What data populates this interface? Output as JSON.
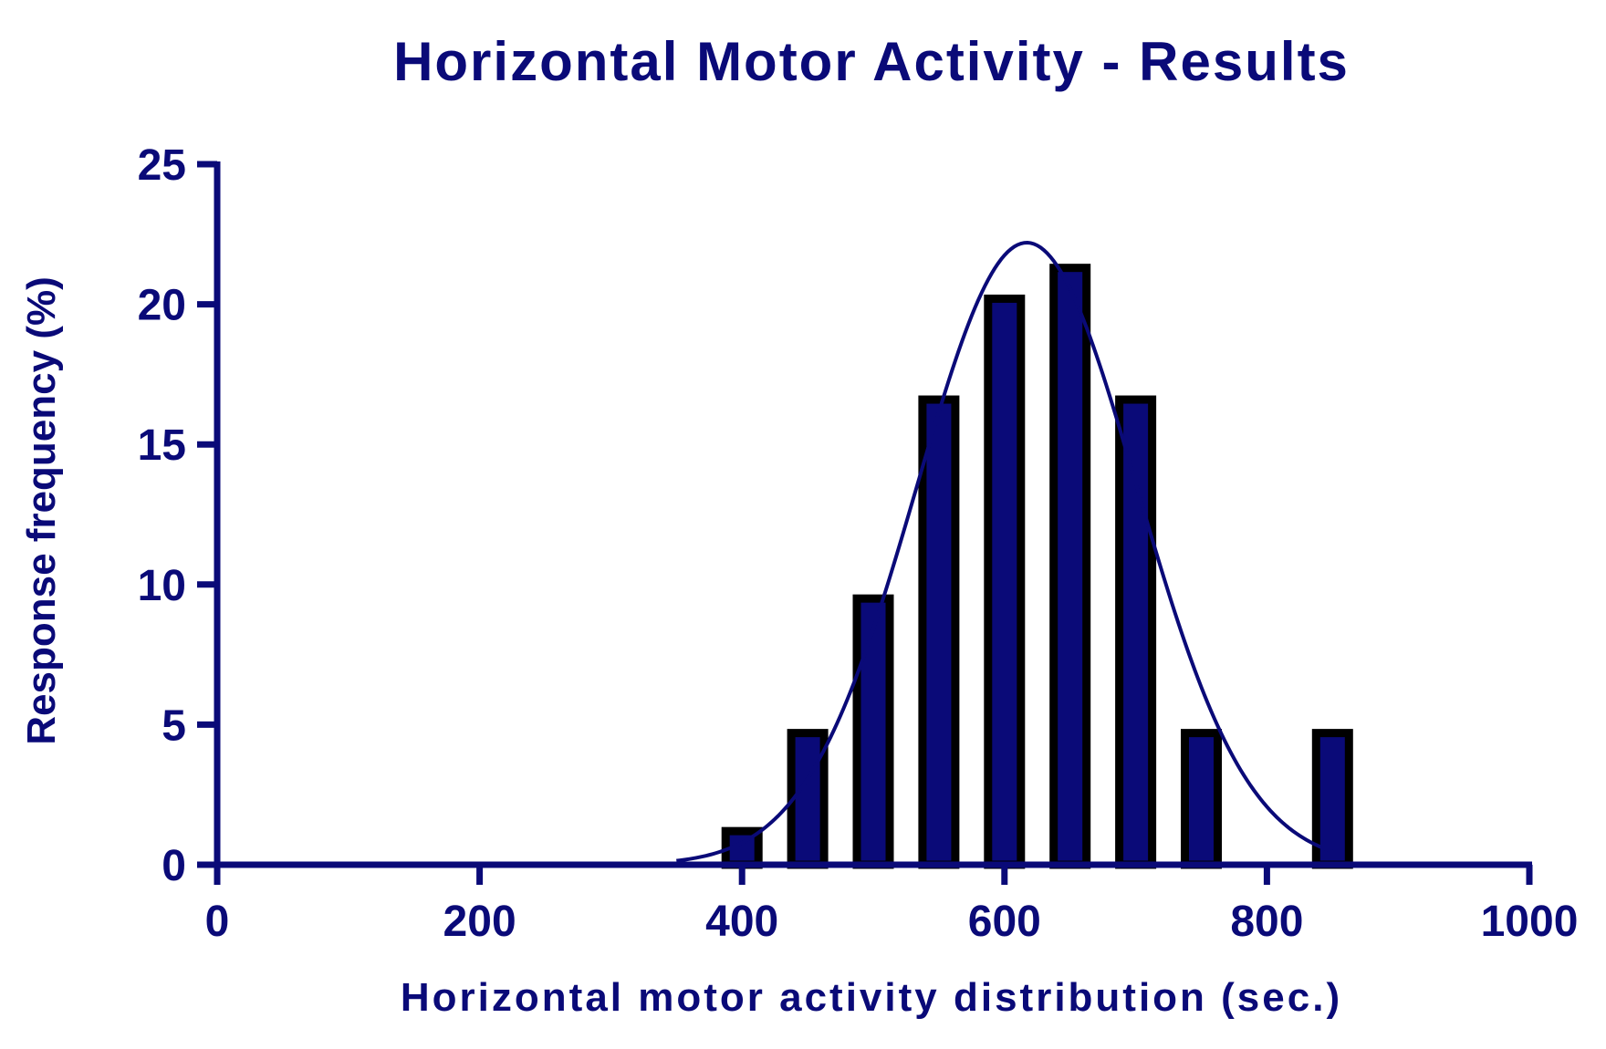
{
  "colors": {
    "navy": "#0a0a78",
    "bar_outline": "#000000",
    "background": "#ffffff"
  },
  "chart_data": {
    "type": "bar",
    "title": "Horizontal Motor Activity - Results",
    "xlabel": "Horizontal motor activity distribution (sec.)",
    "ylabel": "Response frequency (%)",
    "xlim": [
      0,
      1000
    ],
    "ylim": [
      0,
      25
    ],
    "x_ticks": [
      "0",
      "200",
      "400",
      "600",
      "800",
      "1000"
    ],
    "y_ticks": [
      "0",
      "5",
      "10",
      "15",
      "20",
      "25"
    ],
    "grid": false,
    "legend": "none",
    "series": [
      {
        "x": [
          400,
          450,
          500,
          550,
          600,
          650,
          700,
          750,
          850
        ],
        "values": [
          1.2,
          4.7,
          9.5,
          16.6,
          20.2,
          21.3,
          16.6,
          4.7,
          4.7
        ]
      }
    ],
    "bin_width": 50,
    "fit_curve": {
      "type": "gaussian",
      "mean": 617,
      "sd": 84,
      "amplitude": 22.2,
      "x_range": [
        350,
        850
      ]
    }
  }
}
